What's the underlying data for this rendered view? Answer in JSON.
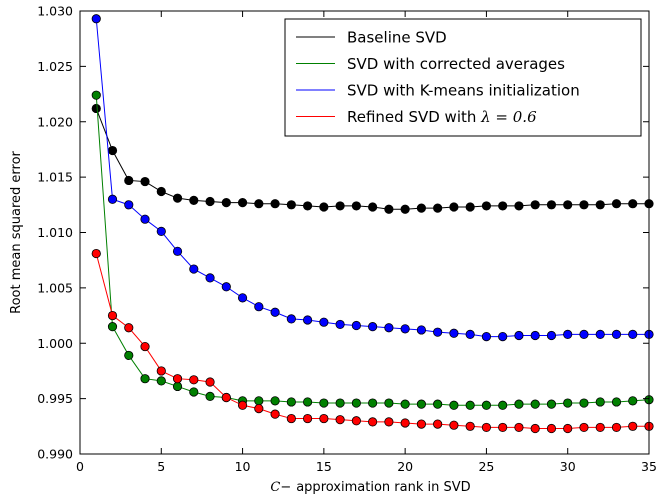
{
  "chart_data": {
    "type": "line",
    "xlabel_math": "C",
    "xlabel_math_suffix": "−",
    "xlabel_text": "approximation rank in SVD",
    "ylabel": "Root mean squared error",
    "xlim": [
      0,
      35
    ],
    "ylim": [
      0.99,
      1.03
    ],
    "xticks": [
      0,
      5,
      10,
      15,
      20,
      25,
      30,
      35
    ],
    "yticks": [
      0.99,
      0.995,
      1.0,
      1.005,
      1.01,
      1.015,
      1.02,
      1.025,
      1.03
    ],
    "xtick_labels": [
      "0",
      "5",
      "10",
      "15",
      "20",
      "25",
      "30",
      "35"
    ],
    "ytick_labels": [
      "0.990",
      "0.995",
      "1.000",
      "1.005",
      "1.010",
      "1.015",
      "1.020",
      "1.025",
      "1.030"
    ],
    "grid": false,
    "legend_position": "top-right",
    "x": [
      1,
      2,
      3,
      4,
      5,
      6,
      7,
      8,
      9,
      10,
      11,
      12,
      13,
      14,
      15,
      16,
      17,
      18,
      19,
      20,
      21,
      22,
      23,
      24,
      25,
      26,
      27,
      28,
      29,
      30,
      31,
      32,
      33,
      34,
      35
    ],
    "series": [
      {
        "name": "Baseline SVD",
        "color": "#000000",
        "values": [
          1.0212,
          1.0174,
          1.0147,
          1.0146,
          1.0137,
          1.0131,
          1.0129,
          1.0128,
          1.0127,
          1.0127,
          1.0126,
          1.0126,
          1.0125,
          1.0124,
          1.0123,
          1.0124,
          1.0124,
          1.0123,
          1.0121,
          1.0121,
          1.0122,
          1.0122,
          1.0123,
          1.0123,
          1.0124,
          1.0124,
          1.0124,
          1.0125,
          1.0125,
          1.0125,
          1.0125,
          1.0125,
          1.0126,
          1.0126,
          1.0126
        ]
      },
      {
        "name": "SVD with corrected averages",
        "color": "#008000",
        "values": [
          1.0224,
          1.0015,
          0.9989,
          0.9968,
          0.9966,
          0.9961,
          0.9956,
          0.9952,
          0.9951,
          0.9948,
          0.9948,
          0.9948,
          0.9947,
          0.9947,
          0.9946,
          0.9946,
          0.9946,
          0.9946,
          0.9946,
          0.9945,
          0.9945,
          0.9945,
          0.9944,
          0.9944,
          0.9944,
          0.9944,
          0.9945,
          0.9945,
          0.9945,
          0.9946,
          0.9946,
          0.9947,
          0.9947,
          0.9948,
          0.9949
        ]
      },
      {
        "name": "SVD with K-means initialization",
        "color": "#0000ff",
        "values": [
          1.0293,
          1.013,
          1.0125,
          1.0112,
          1.0101,
          1.0083,
          1.0067,
          1.0059,
          1.0051,
          1.0041,
          1.0033,
          1.0028,
          1.0022,
          1.0021,
          1.0019,
          1.0017,
          1.0016,
          1.0015,
          1.0014,
          1.0013,
          1.0012,
          1.001,
          1.0009,
          1.0008,
          1.0006,
          1.0006,
          1.0007,
          1.0007,
          1.0007,
          1.0008,
          1.0008,
          1.0008,
          1.0008,
          1.0008,
          1.0008
        ]
      },
      {
        "name_prefix": "Refined SVD with ",
        "name_math": "λ = 0.6",
        "color": "#ff0000",
        "values": [
          1.0081,
          1.0025,
          1.0014,
          0.9997,
          0.9975,
          0.9968,
          0.9967,
          0.9965,
          0.9951,
          0.9944,
          0.9941,
          0.9936,
          0.9932,
          0.9932,
          0.9932,
          0.9931,
          0.993,
          0.9929,
          0.9929,
          0.9928,
          0.9927,
          0.9927,
          0.9926,
          0.9925,
          0.9924,
          0.9924,
          0.9924,
          0.9923,
          0.9923,
          0.9923,
          0.9924,
          0.9924,
          0.9924,
          0.9925,
          0.9925
        ]
      }
    ]
  }
}
